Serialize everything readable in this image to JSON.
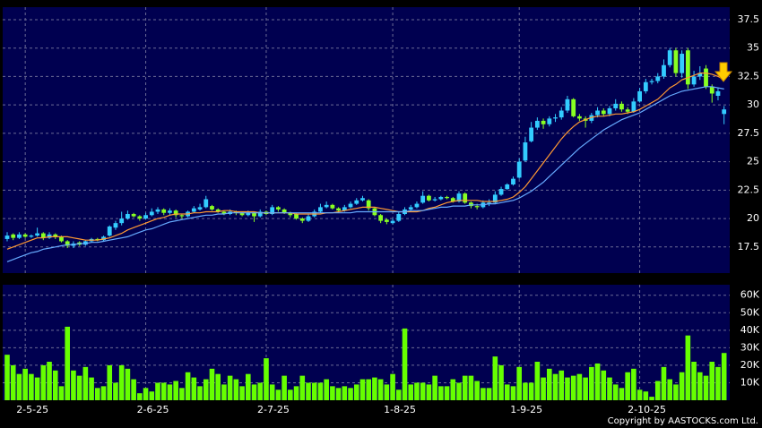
{
  "chart_data": [
    {
      "type": "candlestick",
      "up_color": "#33ccff",
      "down_color": "#88ff22",
      "ylim": [
        15.2,
        38.6
      ],
      "yticks": [
        37.5,
        35,
        32.5,
        30,
        27.5,
        25,
        22.5,
        20,
        17.5
      ],
      "grid": true,
      "open": [
        18.2,
        18.6,
        18.3,
        18.6,
        18.4,
        18.5,
        18.7,
        18.3,
        18.6,
        18.4,
        18.0,
        17.6,
        17.9,
        17.7,
        18.0,
        18.2,
        18.1,
        18.5,
        19.2,
        19.6,
        20.0,
        20.4,
        20.2,
        20.0,
        20.3,
        20.6,
        20.8,
        20.5,
        20.7,
        20.3,
        20.2,
        20.6,
        20.8,
        21.0,
        21.1,
        20.8,
        20.6,
        20.4,
        20.6,
        20.5,
        20.3,
        20.5,
        20.2,
        20.6,
        20.4,
        21.0,
        20.8,
        20.5,
        20.4,
        20.0,
        19.8,
        20.2,
        20.6,
        21.0,
        21.2,
        20.9,
        20.7,
        21.0,
        21.3,
        21.6,
        21.6,
        20.9,
        20.3,
        19.9,
        19.6,
        19.8,
        20.4,
        20.8,
        21.0,
        21.4,
        22.0,
        21.6,
        21.7,
        21.9,
        21.8,
        21.5,
        22.2,
        21.4,
        21.1,
        21.0,
        21.3,
        21.4,
        22.1,
        22.6,
        23.0,
        23.6,
        25.1,
        26.8,
        28.0,
        28.6,
        28.3,
        28.8,
        28.9,
        29.5,
        30.5,
        29.0,
        28.8,
        28.6,
        29.1,
        29.5,
        29.2,
        29.7,
        30.1,
        29.6,
        29.4,
        30.3,
        31.2,
        32.0,
        32.1,
        32.5,
        33.5,
        34.8,
        32.8,
        34.8,
        31.8,
        32.5,
        33.2,
        31.6,
        30.8,
        29.2
      ],
      "high": [
        18.8,
        18.7,
        18.8,
        18.7,
        18.6,
        19.2,
        18.8,
        18.8,
        18.7,
        18.5,
        18.1,
        18.0,
        18.0,
        18.1,
        18.3,
        18.3,
        18.5,
        19.4,
        19.8,
        20.6,
        20.7,
        20.5,
        20.3,
        20.5,
        20.9,
        21.0,
        20.9,
        20.9,
        20.8,
        20.4,
        20.7,
        21.1,
        21.3,
        22.0,
        21.2,
        20.9,
        20.7,
        20.8,
        20.7,
        20.6,
        20.7,
        20.6,
        20.8,
        20.7,
        21.2,
        21.1,
        20.9,
        20.6,
        20.5,
        20.1,
        20.4,
        20.8,
        21.3,
        21.5,
        21.3,
        21.0,
        21.2,
        21.5,
        21.8,
        22.0,
        21.7,
        21.0,
        20.4,
        20.0,
        20.0,
        20.6,
        21.0,
        21.2,
        21.5,
        22.4,
        22.1,
        21.9,
        22.0,
        22.0,
        21.9,
        22.4,
        22.3,
        21.5,
        21.3,
        21.6,
        21.7,
        22.4,
        22.8,
        23.1,
        23.7,
        25.3,
        27.2,
        28.5,
        28.9,
        28.8,
        29.0,
        29.2,
        29.8,
        30.8,
        30.6,
        29.2,
        29.0,
        29.3,
        29.8,
        29.7,
        29.9,
        30.5,
        30.3,
        29.8,
        30.6,
        31.5,
        32.3,
        32.3,
        32.8,
        34.0,
        35.0,
        35.0,
        34.8,
        35.0,
        33.0,
        33.4,
        33.5,
        31.8,
        31.5,
        29.9
      ],
      "low": [
        18.0,
        18.1,
        18.2,
        18.3,
        18.3,
        18.4,
        18.1,
        18.2,
        18.2,
        17.9,
        17.4,
        17.4,
        17.6,
        17.6,
        17.9,
        18.0,
        18.0,
        18.4,
        19.0,
        19.4,
        19.9,
        20.1,
        19.8,
        19.9,
        20.2,
        20.4,
        20.3,
        20.3,
        20.1,
        20.0,
        20.1,
        20.5,
        20.7,
        20.9,
        20.7,
        20.5,
        20.3,
        20.3,
        20.3,
        20.2,
        20.2,
        19.7,
        20.1,
        20.3,
        20.3,
        20.6,
        20.4,
        20.1,
        19.9,
        19.6,
        19.7,
        20.1,
        20.5,
        20.9,
        20.8,
        20.5,
        20.6,
        20.9,
        21.2,
        21.5,
        20.7,
        20.2,
        19.6,
        19.5,
        19.5,
        19.7,
        20.3,
        20.7,
        20.9,
        21.3,
        21.5,
        21.5,
        21.6,
        21.7,
        21.4,
        21.4,
        21.3,
        20.9,
        20.8,
        20.9,
        21.1,
        21.3,
        22.0,
        22.5,
        22.9,
        23.5,
        25.0,
        26.7,
        27.8,
        27.9,
        28.1,
        28.5,
        28.7,
        29.3,
        28.9,
        28.6,
        28.0,
        28.4,
        28.9,
        29.0,
        29.0,
        29.5,
        29.4,
        29.2,
        29.3,
        30.2,
        31.0,
        31.8,
        31.9,
        32.3,
        33.3,
        32.5,
        32.4,
        31.4,
        31.6,
        32.2,
        31.4,
        30.2,
        30.4,
        28.3
      ],
      "close": [
        18.5,
        18.3,
        18.6,
        18.4,
        18.5,
        18.7,
        18.3,
        18.6,
        18.4,
        18.0,
        17.6,
        17.8,
        17.7,
        18.0,
        18.2,
        18.1,
        18.4,
        19.3,
        19.6,
        20.0,
        20.4,
        20.2,
        20.0,
        20.3,
        20.6,
        20.8,
        20.5,
        20.7,
        20.3,
        20.2,
        20.6,
        20.9,
        21.0,
        21.7,
        20.8,
        20.6,
        20.4,
        20.6,
        20.5,
        20.3,
        20.5,
        20.2,
        20.6,
        20.4,
        21.0,
        20.8,
        20.5,
        20.3,
        20.0,
        19.8,
        20.2,
        20.6,
        21.0,
        21.2,
        20.9,
        20.7,
        21.0,
        21.3,
        21.6,
        21.8,
        20.9,
        20.3,
        19.8,
        19.7,
        19.8,
        20.4,
        20.8,
        21.0,
        21.3,
        22.0,
        21.6,
        21.7,
        21.9,
        21.8,
        21.5,
        22.2,
        21.4,
        21.1,
        21.0,
        21.4,
        21.4,
        22.1,
        22.6,
        23.0,
        23.5,
        25.0,
        26.7,
        28.0,
        28.6,
        28.3,
        28.8,
        28.9,
        29.5,
        30.5,
        29.0,
        28.8,
        28.6,
        29.1,
        29.5,
        29.2,
        29.7,
        30.1,
        29.6,
        29.4,
        30.3,
        31.2,
        32.0,
        32.1,
        32.5,
        33.5,
        34.8,
        32.8,
        34.5,
        31.8,
        32.5,
        32.8,
        31.6,
        31.0,
        31.2,
        29.6
      ],
      "series": [
        {
          "color": "#ff9933",
          "values": [
            17.3,
            17.5,
            17.7,
            17.9,
            18.1,
            18.3,
            18.3,
            18.4,
            18.4,
            18.4,
            18.4,
            18.3,
            18.2,
            18.1,
            18.1,
            18.1,
            18.2,
            18.3,
            18.5,
            18.7,
            19.0,
            19.2,
            19.4,
            19.6,
            19.8,
            20.0,
            20.1,
            20.3,
            20.4,
            20.4,
            20.4,
            20.5,
            20.5,
            20.6,
            20.6,
            20.6,
            20.7,
            20.7,
            20.6,
            20.6,
            20.6,
            20.6,
            20.5,
            20.5,
            20.5,
            20.5,
            20.5,
            20.5,
            20.4,
            20.4,
            20.4,
            20.4,
            20.4,
            20.5,
            20.5,
            20.6,
            20.7,
            20.8,
            20.9,
            21.0,
            21.0,
            21.0,
            20.9,
            20.8,
            20.7,
            20.6,
            20.6,
            20.6,
            20.6,
            20.7,
            20.9,
            21.0,
            21.2,
            21.4,
            21.5,
            21.6,
            21.6,
            21.6,
            21.6,
            21.5,
            21.5,
            21.5,
            21.6,
            21.7,
            21.9,
            22.3,
            22.8,
            23.5,
            24.2,
            24.9,
            25.6,
            26.3,
            27.0,
            27.6,
            28.1,
            28.5,
            28.7,
            28.9,
            29.0,
            29.0,
            29.1,
            29.2,
            29.2,
            29.3,
            29.4,
            29.6,
            29.9,
            30.2,
            30.5,
            31.0,
            31.5,
            31.8,
            32.2,
            32.4,
            32.6,
            32.8,
            32.8,
            32.7,
            32.5,
            32.2
          ]
        },
        {
          "color": "#66aaff",
          "values": [
            16.2,
            16.4,
            16.6,
            16.8,
            17.0,
            17.1,
            17.3,
            17.4,
            17.5,
            17.6,
            17.7,
            17.7,
            17.8,
            17.8,
            17.9,
            17.9,
            18.0,
            18.1,
            18.2,
            18.3,
            18.4,
            18.6,
            18.8,
            19.0,
            19.1,
            19.3,
            19.5,
            19.7,
            19.8,
            19.9,
            20.0,
            20.1,
            20.2,
            20.3,
            20.3,
            20.4,
            20.4,
            20.5,
            20.5,
            20.5,
            20.5,
            20.5,
            20.5,
            20.5,
            20.5,
            20.5,
            20.5,
            20.5,
            20.5,
            20.5,
            20.5,
            20.5,
            20.5,
            20.5,
            20.5,
            20.5,
            20.5,
            20.5,
            20.6,
            20.6,
            20.6,
            20.6,
            20.6,
            20.6,
            20.6,
            20.6,
            20.6,
            20.7,
            20.7,
            20.7,
            20.8,
            20.9,
            21.0,
            21.0,
            21.1,
            21.1,
            21.1,
            21.2,
            21.2,
            21.2,
            21.3,
            21.3,
            21.4,
            21.5,
            21.6,
            21.8,
            22.1,
            22.4,
            22.8,
            23.2,
            23.7,
            24.2,
            24.7,
            25.2,
            25.7,
            26.2,
            26.6,
            27.0,
            27.4,
            27.8,
            28.1,
            28.4,
            28.7,
            28.9,
            29.1,
            29.3,
            29.6,
            29.9,
            30.2,
            30.5,
            30.8,
            31.0,
            31.2,
            31.3,
            31.4,
            31.5,
            31.6,
            31.6,
            31.5,
            31.4
          ]
        }
      ]
    },
    {
      "type": "bar",
      "color": "#66ff00",
      "ylim": [
        0,
        66000
      ],
      "grid": true,
      "yticks": [
        {
          "value": 60000,
          "label": "60K"
        },
        {
          "value": 50000,
          "label": "50K"
        },
        {
          "value": 40000,
          "label": "40K"
        },
        {
          "value": 30000,
          "label": "30K"
        },
        {
          "value": 20000,
          "label": "20K"
        },
        {
          "value": 10000,
          "label": "10K"
        }
      ],
      "categories": [
        null,
        null,
        null,
        "2-5-25",
        null,
        null,
        null,
        null,
        null,
        null,
        null,
        null,
        null,
        null,
        null,
        null,
        null,
        null,
        null,
        null,
        null,
        null,
        null,
        "2-6-25",
        null,
        null,
        null,
        null,
        null,
        null,
        null,
        null,
        null,
        null,
        null,
        null,
        null,
        null,
        null,
        null,
        null,
        null,
        null,
        "2-7-25",
        null,
        null,
        null,
        null,
        null,
        null,
        null,
        null,
        null,
        null,
        null,
        null,
        null,
        null,
        null,
        null,
        null,
        null,
        null,
        null,
        "1-8-25",
        null,
        null,
        null,
        null,
        null,
        null,
        null,
        null,
        null,
        null,
        null,
        null,
        null,
        null,
        null,
        null,
        null,
        null,
        null,
        null,
        "1-9-25",
        null,
        null,
        null,
        null,
        null,
        null,
        null,
        null,
        null,
        null,
        null,
        null,
        null,
        null,
        null,
        null,
        null,
        null,
        null,
        "2-10-25",
        null,
        null,
        null,
        null,
        null,
        null,
        null,
        null,
        null,
        null,
        null,
        null,
        null,
        null
      ],
      "values": [
        26000,
        20000,
        15000,
        18000,
        15000,
        13000,
        20000,
        22000,
        17000,
        8000,
        42000,
        17000,
        14000,
        19000,
        13000,
        7000,
        8000,
        20000,
        10000,
        20000,
        18000,
        12000,
        4000,
        7000,
        5000,
        10000,
        10000,
        9000,
        11000,
        7000,
        16000,
        13000,
        8000,
        12000,
        18000,
        15000,
        9000,
        14000,
        12000,
        8000,
        15000,
        9000,
        10000,
        24000,
        9000,
        6000,
        14000,
        6000,
        8000,
        14000,
        10000,
        10000,
        10000,
        12000,
        8000,
        7000,
        8000,
        7000,
        9000,
        12000,
        12000,
        13000,
        12000,
        9000,
        15000,
        6000,
        41000,
        9000,
        10000,
        10000,
        9000,
        14000,
        8000,
        8000,
        12000,
        10000,
        14000,
        14000,
        11000,
        7000,
        7000,
        25000,
        20000,
        9000,
        8000,
        19000,
        10000,
        10000,
        22000,
        13000,
        18000,
        15000,
        17000,
        13000,
        14000,
        15000,
        13000,
        19000,
        21000,
        17000,
        13000,
        9000,
        7000,
        16000,
        18000,
        6000,
        5000,
        2000,
        11000,
        19000,
        12000,
        9000,
        16000,
        37000,
        22000,
        16000,
        14000,
        22000,
        19000,
        27000
      ],
      "source": "Copyright by AASTOCKS.com Ltd."
    }
  ]
}
